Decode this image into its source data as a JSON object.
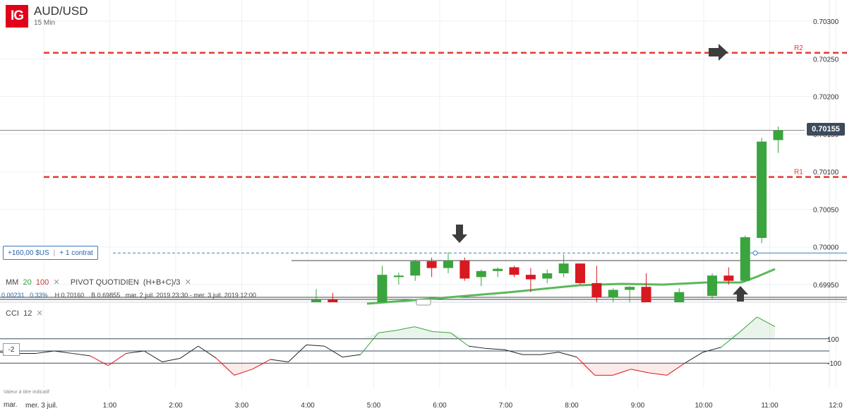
{
  "header": {
    "logo": "IG",
    "symbol": "AUD/USD",
    "timeframe": "15 Min"
  },
  "position": {
    "pnl": "+160,00 $US",
    "contract": "+ 1 contrat"
  },
  "indicators": {
    "mm": {
      "label": "MM",
      "p1": "20",
      "p2": "100"
    },
    "pivot": {
      "label": "PIVOT QUOTIDIEN",
      "formula": "(H+B+C)/3"
    },
    "stats": {
      "change": "0.00231",
      "pct": "0.33%",
      "high": "H 0.70160",
      "low": "B 0.69855",
      "range": "mar. 2 juil. 2019 23:30 - mer. 3 juil. 2019 12:00"
    },
    "cci": {
      "label": "CCI",
      "period": "12",
      "box": "-2"
    }
  },
  "disclaimer": "Valeur à titre indicatif",
  "first_time_label": "mar.",
  "colors": {
    "up": "#3aa43e",
    "down": "#d71920",
    "pivot": "#e53935",
    "sma": "#5cb85c",
    "badge": "#3d4b5c"
  },
  "chart_data": {
    "type": "candlestick",
    "title": "AUD/USD",
    "x_ticks": [
      "mer. 3 juil.",
      "1:00",
      "2:00",
      "3:00",
      "4:00",
      "5:00",
      "6:00",
      "7:00",
      "8:00",
      "9:00",
      "10:00",
      "11:00",
      "12:0"
    ],
    "y_ticks": [
      "0.69950",
      "0.70000",
      "0.70050",
      "0.70100",
      "0.70150",
      "0.70200",
      "0.70250",
      "0.70300"
    ],
    "ylim": [
      0.69915,
      0.70315
    ],
    "current_price": "0.70155",
    "levels": [
      {
        "name": "R2",
        "value": 0.70258
      },
      {
        "name": "R1",
        "value": 0.70093
      }
    ],
    "position_level": 0.69992,
    "candles": [
      {
        "t": "4:00",
        "o": 0.69916,
        "h": 0.69944,
        "l": 0.6988,
        "c": 0.6993
      },
      {
        "t": "4:15",
        "o": 0.6993,
        "h": 0.69939,
        "l": 0.69905,
        "c": 0.69915
      },
      {
        "t": "5:00",
        "o": 0.6992,
        "h": 0.69975,
        "l": 0.6991,
        "c": 0.69963
      },
      {
        "t": "5:15",
        "o": 0.6996,
        "h": 0.69966,
        "l": 0.6995,
        "c": 0.69962
      },
      {
        "t": "5:30",
        "o": 0.69962,
        "h": 0.69983,
        "l": 0.69955,
        "c": 0.69981
      },
      {
        "t": "5:45",
        "o": 0.69981,
        "h": 0.69986,
        "l": 0.6996,
        "c": 0.69972
      },
      {
        "t": "6:00",
        "o": 0.69972,
        "h": 0.69993,
        "l": 0.69965,
        "c": 0.69982
      },
      {
        "t": "6:15",
        "o": 0.69982,
        "h": 0.69986,
        "l": 0.69955,
        "c": 0.69958
      },
      {
        "t": "6:30",
        "o": 0.6996,
        "h": 0.6997,
        "l": 0.69948,
        "c": 0.69968
      },
      {
        "t": "6:45",
        "o": 0.69968,
        "h": 0.69973,
        "l": 0.6996,
        "c": 0.69971
      },
      {
        "t": "7:00",
        "o": 0.69973,
        "h": 0.69975,
        "l": 0.6996,
        "c": 0.69963
      },
      {
        "t": "7:15",
        "o": 0.69963,
        "h": 0.69972,
        "l": 0.6994,
        "c": 0.69957
      },
      {
        "t": "7:30",
        "o": 0.69958,
        "h": 0.6997,
        "l": 0.69952,
        "c": 0.69965
      },
      {
        "t": "7:45",
        "o": 0.69965,
        "h": 0.6999,
        "l": 0.6996,
        "c": 0.69978
      },
      {
        "t": "8:00",
        "o": 0.69978,
        "h": 0.69978,
        "l": 0.6995,
        "c": 0.69952
      },
      {
        "t": "8:15",
        "o": 0.69952,
        "h": 0.69975,
        "l": 0.69925,
        "c": 0.69933
      },
      {
        "t": "8:30",
        "o": 0.69933,
        "h": 0.69945,
        "l": 0.6992,
        "c": 0.69943
      },
      {
        "t": "8:45",
        "o": 0.69943,
        "h": 0.69948,
        "l": 0.69925,
        "c": 0.69947
      },
      {
        "t": "9:00",
        "o": 0.69947,
        "h": 0.69965,
        "l": 0.699,
        "c": 0.6991
      },
      {
        "t": "9:30",
        "o": 0.69913,
        "h": 0.69945,
        "l": 0.69905,
        "c": 0.6994
      },
      {
        "t": "10:00",
        "o": 0.69935,
        "h": 0.69965,
        "l": 0.6993,
        "c": 0.69962
      },
      {
        "t": "10:15",
        "o": 0.69962,
        "h": 0.69973,
        "l": 0.6995,
        "c": 0.69955
      },
      {
        "t": "10:30",
        "o": 0.69955,
        "h": 0.70015,
        "l": 0.69953,
        "c": 0.70013
      },
      {
        "t": "10:45",
        "o": 0.70012,
        "h": 0.70145,
        "l": 0.70005,
        "c": 0.7014
      },
      {
        "t": "11:00",
        "o": 0.70142,
        "h": 0.7016,
        "l": 0.70125,
        "c": 0.70155
      }
    ],
    "cci": [
      -10,
      -20,
      -20,
      0,
      -20,
      -40,
      -120,
      -20,
      0,
      -90,
      -60,
      40,
      -60,
      -200,
      -150,
      -70,
      -90,
      50,
      40,
      -50,
      -30,
      150,
      170,
      200,
      160,
      150,
      40,
      20,
      10,
      -30,
      -30,
      -10,
      -50,
      -200,
      -200,
      -150,
      -180,
      -200,
      -100,
      -10,
      30,
      150,
      280,
      200
    ]
  }
}
